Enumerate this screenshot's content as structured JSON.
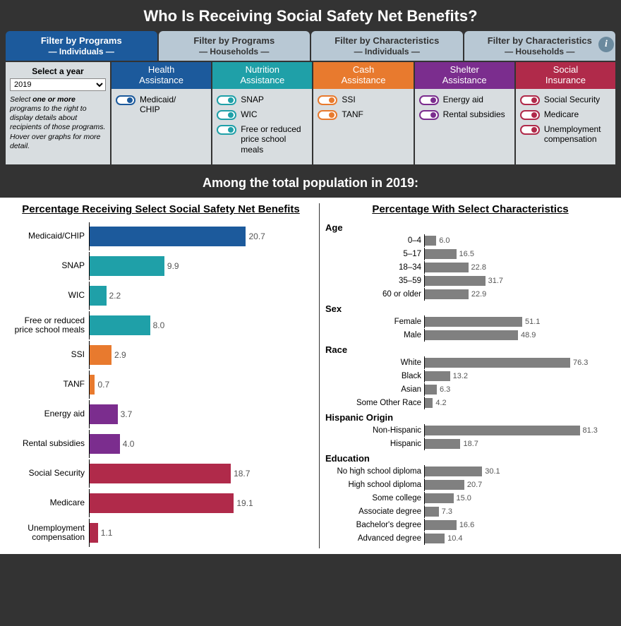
{
  "title": "Who Is Receiving Social Safety Net Benefits?",
  "tabs": [
    {
      "line1": "Filter by Programs",
      "line2": "— Individuals —",
      "active": true
    },
    {
      "line1": "Filter by Programs",
      "line2": "— Households —",
      "active": false
    },
    {
      "line1": "Filter by Characteristics",
      "line2": "— Individuals —",
      "active": false
    },
    {
      "line1": "Filter by Characteristics",
      "line2": "— Households —",
      "active": false
    }
  ],
  "year": {
    "label": "Select a year",
    "value": "2019",
    "instruction": "Select <b>one or more</b> programs to the right to display details about recipients of those programs. Hover over graphs for more detail."
  },
  "colors": {
    "health": "#1c5a9c",
    "nutrition": "#1fa0a8",
    "cash": "#e87a2e",
    "shelter": "#7b2d8e",
    "social": "#b02a4a",
    "grey": "#808080"
  },
  "program_columns": [
    {
      "key": "health",
      "header": "Health\nAssistance",
      "items": [
        "Medicaid/\nCHIP"
      ]
    },
    {
      "key": "nutrition",
      "header": "Nutrition\nAssistance",
      "items": [
        "SNAP",
        "WIC",
        "Free or reduced price school meals"
      ]
    },
    {
      "key": "cash",
      "header": "Cash\nAssistance",
      "items": [
        "SSI",
        "TANF"
      ]
    },
    {
      "key": "shelter",
      "header": "Shelter\nAssistance",
      "items": [
        "Energy aid",
        "Rental subsidies"
      ]
    },
    {
      "key": "social",
      "header": "Social\nInsurance",
      "items": [
        "Social Security",
        "Medicare",
        "Unemployment compensation"
      ]
    }
  ],
  "subtitle": "Among the total population in 2019:",
  "left_chart": {
    "title": "Percentage Receiving Select Social Safety Net Benefits",
    "max": 30,
    "bars": [
      {
        "label": "Medicaid/CHIP",
        "value": 20.7,
        "color": "health"
      },
      {
        "label": "SNAP",
        "value": 9.9,
        "color": "nutrition"
      },
      {
        "label": "WIC",
        "value": 2.2,
        "color": "nutrition"
      },
      {
        "label": "Free or reduced price school meals",
        "value": 8.0,
        "color": "nutrition"
      },
      {
        "label": "SSI",
        "value": 2.9,
        "color": "cash"
      },
      {
        "label": "TANF",
        "value": 0.7,
        "color": "cash"
      },
      {
        "label": "Energy aid",
        "value": 3.7,
        "color": "shelter"
      },
      {
        "label": "Rental subsidies",
        "value": 4.0,
        "color": "shelter"
      },
      {
        "label": "Social Security",
        "value": 18.7,
        "color": "social"
      },
      {
        "label": "Medicare",
        "value": 19.1,
        "color": "social"
      },
      {
        "label": "Unemployment compensation",
        "value": 1.1,
        "color": "social"
      }
    ]
  },
  "right_chart": {
    "title": "Percentage With Select Characteristics",
    "max": 100,
    "groups": [
      {
        "label": "Age",
        "bars": [
          {
            "label": "0–4",
            "value": 6.0
          },
          {
            "label": "5–17",
            "value": 16.5
          },
          {
            "label": "18–34",
            "value": 22.8
          },
          {
            "label": "35–59",
            "value": 31.7
          },
          {
            "label": "60 or older",
            "value": 22.9
          }
        ]
      },
      {
        "label": "Sex",
        "bars": [
          {
            "label": "Female",
            "value": 51.1
          },
          {
            "label": "Male",
            "value": 48.9
          }
        ]
      },
      {
        "label": "Race",
        "bars": [
          {
            "label": "White",
            "value": 76.3
          },
          {
            "label": "Black",
            "value": 13.2
          },
          {
            "label": "Asian",
            "value": 6.3
          },
          {
            "label": "Some Other Race",
            "value": 4.2
          }
        ]
      },
      {
        "label": "Hispanic Origin",
        "bars": [
          {
            "label": "Non-Hispanic",
            "value": 81.3
          },
          {
            "label": "Hispanic",
            "value": 18.7
          }
        ]
      },
      {
        "label": "Education",
        "bars": [
          {
            "label": "No high school diploma",
            "value": 30.1
          },
          {
            "label": "High school diploma",
            "value": 20.7
          },
          {
            "label": "Some college",
            "value": 15.0
          },
          {
            "label": "Associate degree",
            "value": 7.3
          },
          {
            "label": "Bachelor's degree",
            "value": 16.6
          },
          {
            "label": "Advanced degree",
            "value": 10.4
          }
        ]
      }
    ]
  }
}
